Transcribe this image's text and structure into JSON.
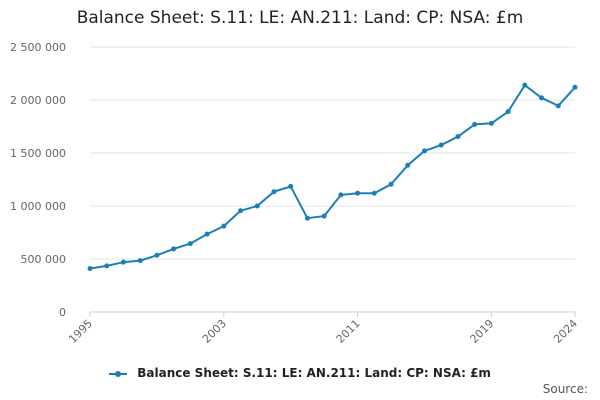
{
  "title": "Balance Sheet: S.11: LE: AN.211: Land: CP: NSA: £m",
  "source_label": "Source:",
  "colors": {
    "series": "#1a7fb8",
    "grid": "#e6e6e6",
    "axis": "#cccccc"
  },
  "chart_data": {
    "type": "line",
    "title": "Balance Sheet: S.11: LE: AN.211: Land: CP: NSA: £m",
    "xlabel": "",
    "ylabel": "",
    "ylim": [
      0,
      2500000
    ],
    "yticks": [
      0,
      500000,
      1000000,
      1500000,
      2000000,
      2500000
    ],
    "ytick_labels": [
      "0",
      "500 000",
      "1 000 000",
      "1 500 000",
      "2 000 000",
      "2 500 000"
    ],
    "xlim": [
      1995,
      2024
    ],
    "xticks": [
      1995,
      2003,
      2011,
      2019,
      2024
    ],
    "xtick_labels": [
      "1995",
      "2003",
      "2011",
      "2019",
      "2024"
    ],
    "grid": true,
    "legend_position": "bottom",
    "series": [
      {
        "name": "Balance Sheet: S.11: LE: AN.211: Land: CP: NSA: £m",
        "x": [
          1995,
          1996,
          1997,
          1998,
          1999,
          2000,
          2001,
          2002,
          2003,
          2004,
          2005,
          2006,
          2007,
          2008,
          2009,
          2010,
          2011,
          2012,
          2013,
          2014,
          2015,
          2016,
          2017,
          2018,
          2019,
          2020,
          2021,
          2022,
          2023,
          2024
        ],
        "values": [
          410000,
          435000,
          470000,
          485000,
          535000,
          595000,
          645000,
          735000,
          810000,
          955000,
          1000000,
          1135000,
          1185000,
          885000,
          905000,
          1105000,
          1120000,
          1120000,
          1205000,
          1385000,
          1520000,
          1575000,
          1655000,
          1770000,
          1780000,
          1890000,
          2140000,
          2020000,
          1945000,
          2120000
        ]
      }
    ]
  }
}
